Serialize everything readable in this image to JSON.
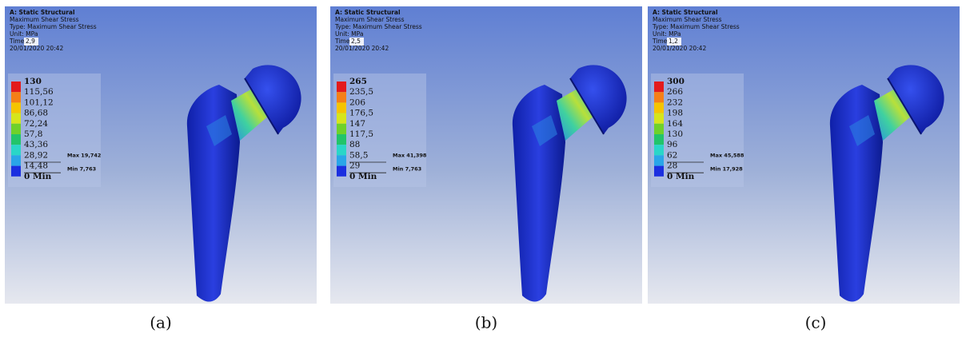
{
  "panels": [
    {
      "caption": "(a)",
      "header": {
        "title": "A: Static Structural",
        "result": "Maximum Shear Stress",
        "type": "Type: Maximum Shear Stress",
        "unit": "Unit: MPa",
        "time_label": "Time:",
        "time": "2,9",
        "date": "20/01/2020 20:42"
      },
      "legend": [
        "130",
        "115,56",
        "101,12",
        "86,68",
        "72,24",
        "57,8",
        "43,36",
        "28,92",
        "14,48",
        "0 Min"
      ],
      "max_label": "Max 19,742",
      "min_label": "Min 7,763"
    },
    {
      "caption": "(b)",
      "header": {
        "title": "A: Static Structural",
        "result": "Maximum Shear Stress",
        "type": "Type: Maximum Shear Stress",
        "unit": "Unit: MPa",
        "time_label": "Time:",
        "time": "2,5",
        "date": "20/01/2020 20:42"
      },
      "legend": [
        "265",
        "235,5",
        "206",
        "176,5",
        "147",
        "117,5",
        "88",
        "58,5",
        "29",
        "0 Min"
      ],
      "max_label": "Max 41,398",
      "min_label": "Min 7,763"
    },
    {
      "caption": "(c)",
      "header": {
        "title": "A: Static Structural",
        "result": "Maximum Shear Stress",
        "type": "Type: Maximum Shear Stress",
        "unit": "Unit: MPa",
        "time_label": "Time:",
        "time": "1,2",
        "date": "20/01/2020 20:42"
      },
      "legend": [
        "300",
        "266",
        "232",
        "198",
        "164",
        "130",
        "96",
        "62",
        "28",
        "0 Min"
      ],
      "max_label": "Max 45,588",
      "min_label": "Min 17,928"
    }
  ]
}
